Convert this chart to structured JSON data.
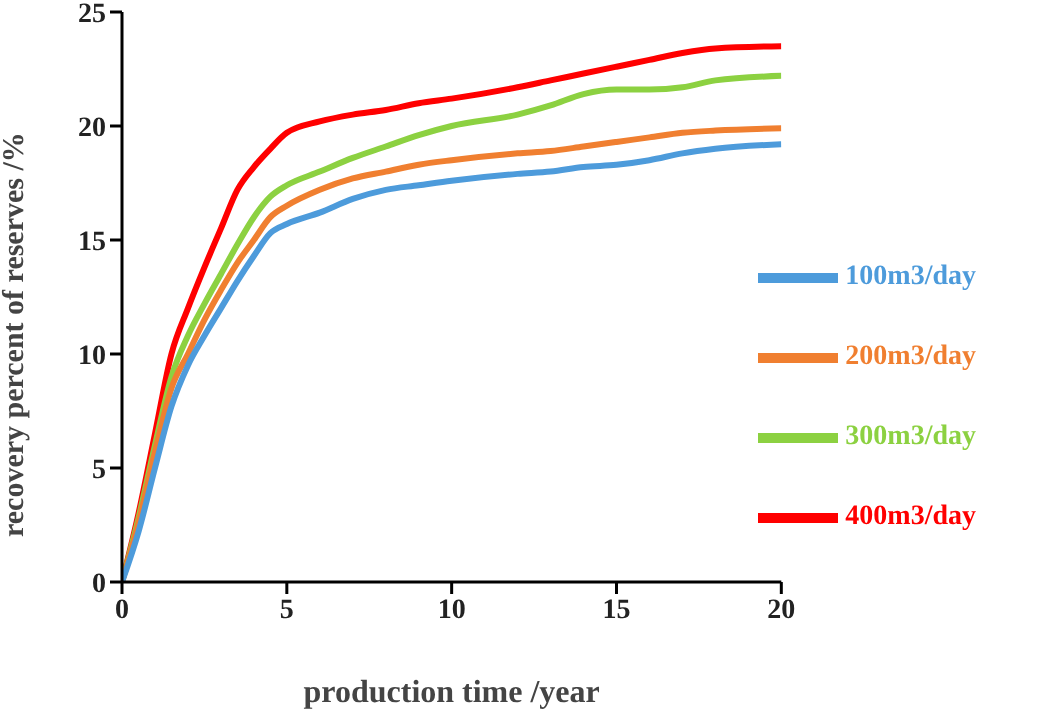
{
  "chart_data": {
    "type": "line",
    "xlabel": "production time /year",
    "ylabel": "recovery percent of reserves /%",
    "x": [
      0,
      0.5,
      1,
      1.5,
      2,
      2.5,
      3,
      3.5,
      4,
      4.5,
      5,
      6,
      7,
      8,
      9,
      10,
      12,
      13,
      14,
      15,
      16,
      17,
      18,
      20
    ],
    "series": [
      {
        "name": "400m3/day",
        "color": "#ff0000",
        "values": [
          0,
          3,
          6.5,
          10,
          12,
          13.8,
          15.5,
          17.2,
          18.2,
          19,
          19.7,
          20.2,
          20.5,
          20.7,
          21,
          21.2,
          21.7,
          22,
          22.3,
          22.6,
          22.9,
          23.2,
          23.4,
          23.5
        ]
      },
      {
        "name": "300m3/day",
        "color": "#8cd141",
        "values": [
          0,
          2.8,
          6,
          9,
          10.8,
          12.2,
          13.5,
          14.8,
          16,
          16.9,
          17.4,
          18,
          18.6,
          19.1,
          19.6,
          20,
          20.5,
          20.9,
          21.4,
          21.6,
          21.6,
          21.7,
          22,
          22.2
        ]
      },
      {
        "name": "200m3/day",
        "color": "#f07f30",
        "values": [
          0,
          2.6,
          5.7,
          8.5,
          10,
          11.5,
          12.8,
          14,
          15,
          16,
          16.5,
          17.2,
          17.7,
          18,
          18.3,
          18.5,
          18.8,
          18.9,
          19.1,
          19.3,
          19.5,
          19.7,
          19.8,
          19.9
        ]
      },
      {
        "name": "100m3/day",
        "color": "#4d9bdb",
        "values": [
          0,
          2.2,
          5,
          7.7,
          9.5,
          10.8,
          12,
          13.2,
          14.3,
          15.3,
          15.7,
          16.2,
          16.8,
          17.2,
          17.4,
          17.6,
          17.9,
          18,
          18.2,
          18.3,
          18.5,
          18.8,
          19,
          19.2
        ]
      }
    ],
    "xlim": [
      0,
      20
    ],
    "xticks": [
      0,
      5,
      10,
      15,
      20
    ],
    "ylim": [
      0,
      25
    ],
    "yticks": [
      0,
      5,
      10,
      15,
      20,
      25
    ],
    "grid": false,
    "legend": "bottom right",
    "marker": "none",
    "line_style": "solid"
  }
}
